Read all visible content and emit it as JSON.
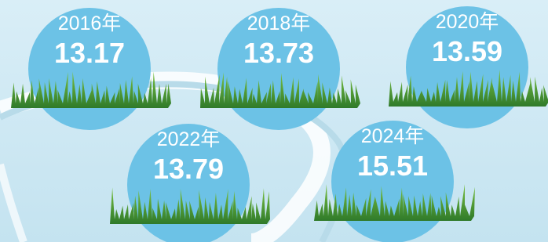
{
  "items": [
    {
      "year": "2016年",
      "value": "13.17"
    },
    {
      "year": "2018年",
      "value": "13.73"
    },
    {
      "year": "2020年",
      "value": "13.59"
    },
    {
      "year": "2022年",
      "value": "13.79"
    },
    {
      "year": "2024年",
      "value": "15.51"
    }
  ]
}
